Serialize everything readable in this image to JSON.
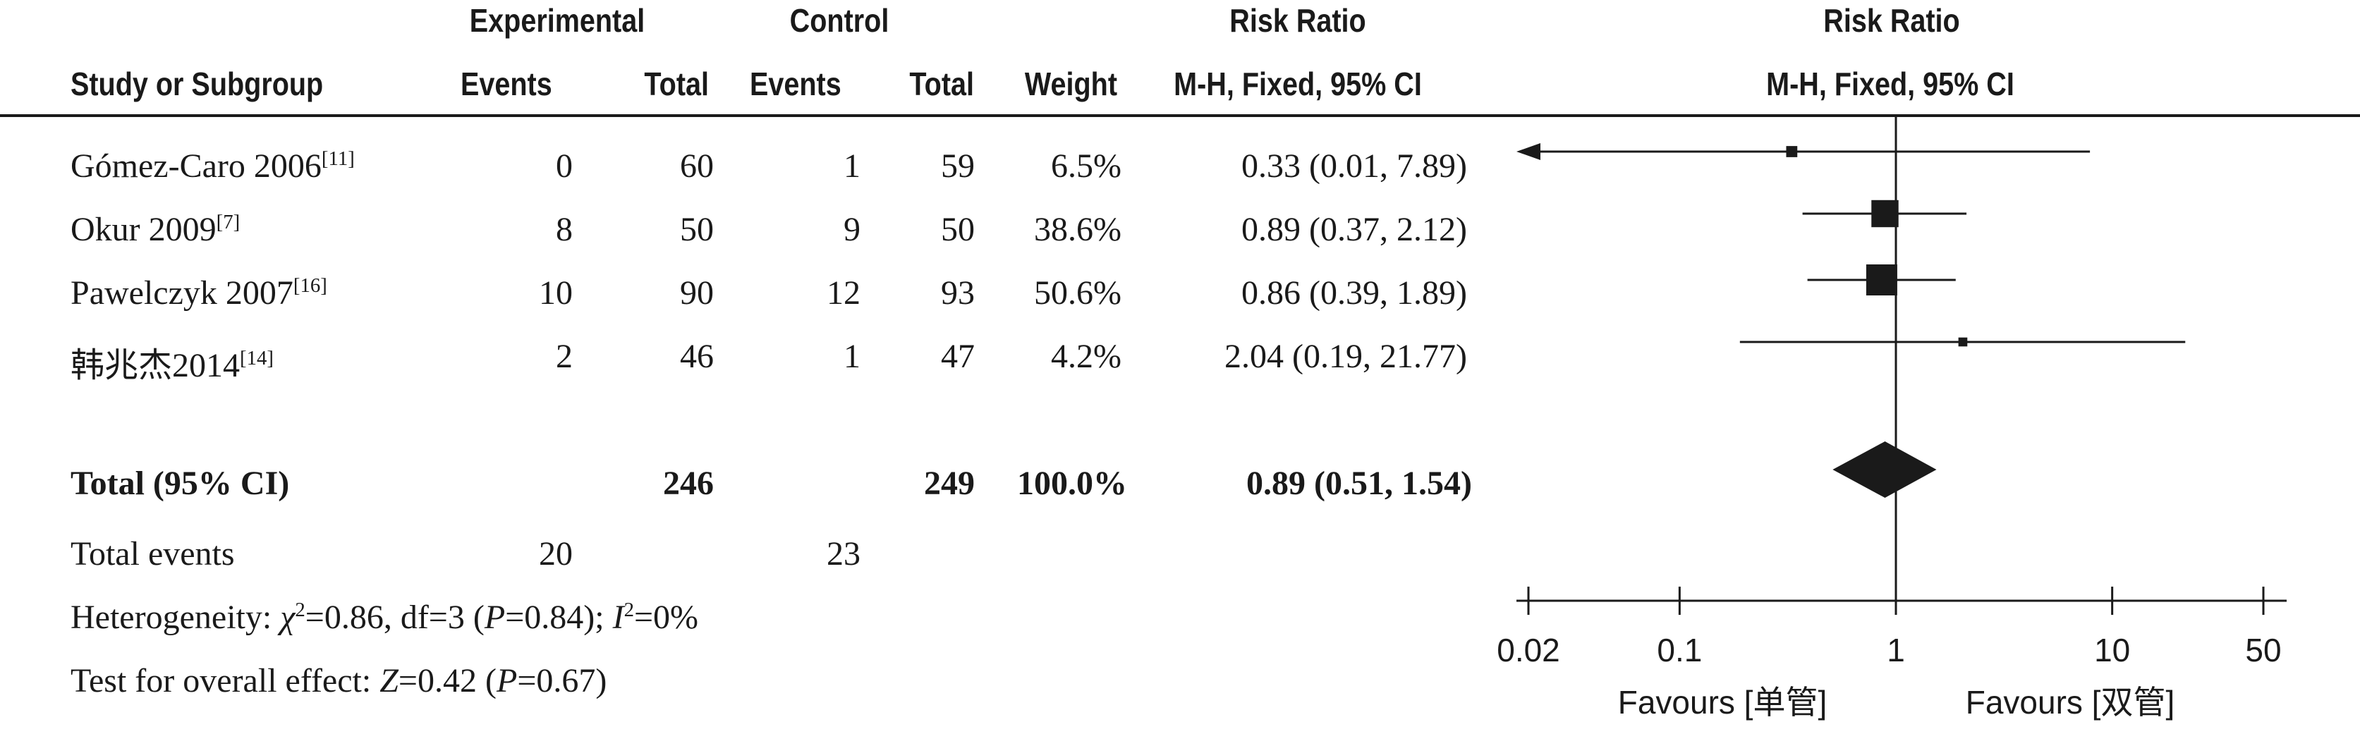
{
  "header": {
    "group_experimental": "Experimental",
    "group_control": "Control",
    "risk_ratio_table": "Risk Ratio",
    "risk_ratio_plot": "Risk Ratio",
    "study": "Study or Subgroup",
    "exp_events": "Events",
    "exp_total": "Total",
    "ctl_events": "Events",
    "ctl_total": "Total",
    "weight": "Weight",
    "method_table": "M-H, Fixed, 95% CI",
    "method_plot": "M-H, Fixed, 95% CI"
  },
  "studies": [
    {
      "name": "Gómez-Caro 2006",
      "ref": "[11]",
      "exp_events": "0",
      "exp_total": "60",
      "ctl_events": "1",
      "ctl_total": "59",
      "weight": "6.5%",
      "ci": "0.33 (0.01, 7.89)"
    },
    {
      "name": "Okur 2009",
      "ref": "[7]",
      "exp_events": "8",
      "exp_total": "50",
      "ctl_events": "9",
      "ctl_total": "50",
      "weight": "38.6%",
      "ci": "0.89 (0.37, 2.12)"
    },
    {
      "name": "Pawelczyk 2007",
      "ref": "[16]",
      "exp_events": "10",
      "exp_total": "90",
      "ctl_events": "12",
      "ctl_total": "93",
      "weight": "50.6%",
      "ci": "0.86 (0.39, 1.89)"
    },
    {
      "name": "韩兆杰2014",
      "ref": "[14]",
      "exp_events": "2",
      "exp_total": "46",
      "ctl_events": "1",
      "ctl_total": "47",
      "weight": "4.2%",
      "ci": "2.04 (0.19, 21.77)"
    }
  ],
  "total": {
    "label": "Total (95% CI)",
    "exp_total": "246",
    "ctl_total": "249",
    "weight": "100.0%",
    "ci": "0.89 (0.51, 1.54)"
  },
  "events": {
    "label": "Total events",
    "exp": "20",
    "ctl": "23"
  },
  "heterogeneity": {
    "prefix": "Heterogeneity: ",
    "chi_sym": "χ",
    "chi_text": "=0.86, df=3 (",
    "p_sym": "P",
    "p_text": "=0.84); ",
    "i_sym": "I",
    "i_text": "=0%"
  },
  "overall": {
    "prefix": "Test for overall effect: ",
    "z_sym": "Z",
    "z_text": "=0.42 (",
    "p_sym": "P",
    "p_text": "=0.67)"
  },
  "chart_data": {
    "type": "forest",
    "title": "Risk Ratio",
    "subtitle": "M-H, Fixed, 95% CI",
    "x_scale": "log",
    "xlim": [
      0.02,
      50
    ],
    "x_ticks": [
      0.02,
      0.1,
      1,
      10,
      50
    ],
    "x_tick_labels": [
      "0.02",
      "0.1",
      "1",
      "10",
      "50"
    ],
    "favours_left": "Favours [单管]",
    "favours_right": "Favours [双管]",
    "reference_line": 1,
    "studies": [
      {
        "name": "Gómez-Caro 2006",
        "rr": 0.33,
        "lower": 0.01,
        "upper": 7.89,
        "weight": 6.5
      },
      {
        "name": "Okur 2009",
        "rr": 0.89,
        "lower": 0.37,
        "upper": 2.12,
        "weight": 38.6
      },
      {
        "name": "Pawelczyk 2007",
        "rr": 0.86,
        "lower": 0.39,
        "upper": 1.89,
        "weight": 50.6
      },
      {
        "name": "韩兆杰2014",
        "rr": 2.04,
        "lower": 0.19,
        "upper": 21.77,
        "weight": 4.2
      }
    ],
    "pooled": {
      "rr": 0.89,
      "lower": 0.51,
      "upper": 1.54
    },
    "colors": {
      "ink": "#1a1a1a"
    }
  }
}
